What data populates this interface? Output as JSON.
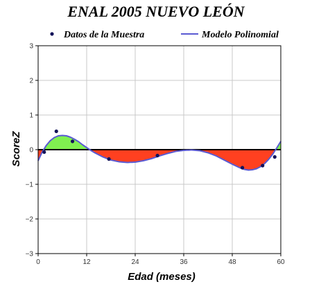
{
  "chart_data": {
    "type": "line",
    "title": "ENAL 2005 NUEVO LEÓN",
    "xlabel": "Edad (meses)",
    "ylabel": "ScoreZ",
    "xlim": [
      0,
      60
    ],
    "ylim": [
      -3,
      3
    ],
    "xticks": [
      0,
      12,
      24,
      36,
      48,
      60
    ],
    "yticks": [
      -3,
      -2,
      -1,
      0,
      1,
      2,
      3
    ],
    "grid": true,
    "legend_placement": "top",
    "series": [
      {
        "name": "Datos de la Muestra",
        "kind": "scatter",
        "color": "#14145a",
        "x": [
          1.5,
          4.5,
          8.5,
          17.5,
          29.5,
          50.5,
          55.5,
          58.5
        ],
        "y": [
          -0.07,
          0.53,
          0.24,
          -0.27,
          -0.17,
          -0.52,
          -0.46,
          -0.21
        ]
      },
      {
        "name": "Modelo Polinomial",
        "kind": "line",
        "color": "#5a5ad2",
        "x": [
          0,
          1,
          2,
          3,
          4,
          5,
          6,
          7,
          8,
          9,
          10,
          11,
          12,
          13,
          14,
          16,
          18,
          20,
          22,
          24,
          26,
          28,
          30,
          32,
          34,
          36,
          38,
          40,
          42,
          44,
          46,
          48,
          50,
          51,
          52,
          53,
          54,
          55,
          56,
          57,
          58,
          59,
          60
        ],
        "y": [
          -0.32,
          -0.07,
          0.12,
          0.26,
          0.35,
          0.4,
          0.41,
          0.4,
          0.36,
          0.3,
          0.23,
          0.14,
          0.06,
          -0.02,
          -0.09,
          -0.21,
          -0.3,
          -0.35,
          -0.37,
          -0.36,
          -0.32,
          -0.26,
          -0.18,
          -0.11,
          -0.05,
          -0.02,
          -0.01,
          -0.03,
          -0.09,
          -0.18,
          -0.3,
          -0.42,
          -0.53,
          -0.57,
          -0.59,
          -0.58,
          -0.55,
          -0.49,
          -0.4,
          -0.28,
          -0.13,
          0.05,
          0.24
        ]
      }
    ],
    "fills": {
      "positive": "#80f050",
      "negative": "#ff4020",
      "zero_line": "#000000"
    }
  }
}
